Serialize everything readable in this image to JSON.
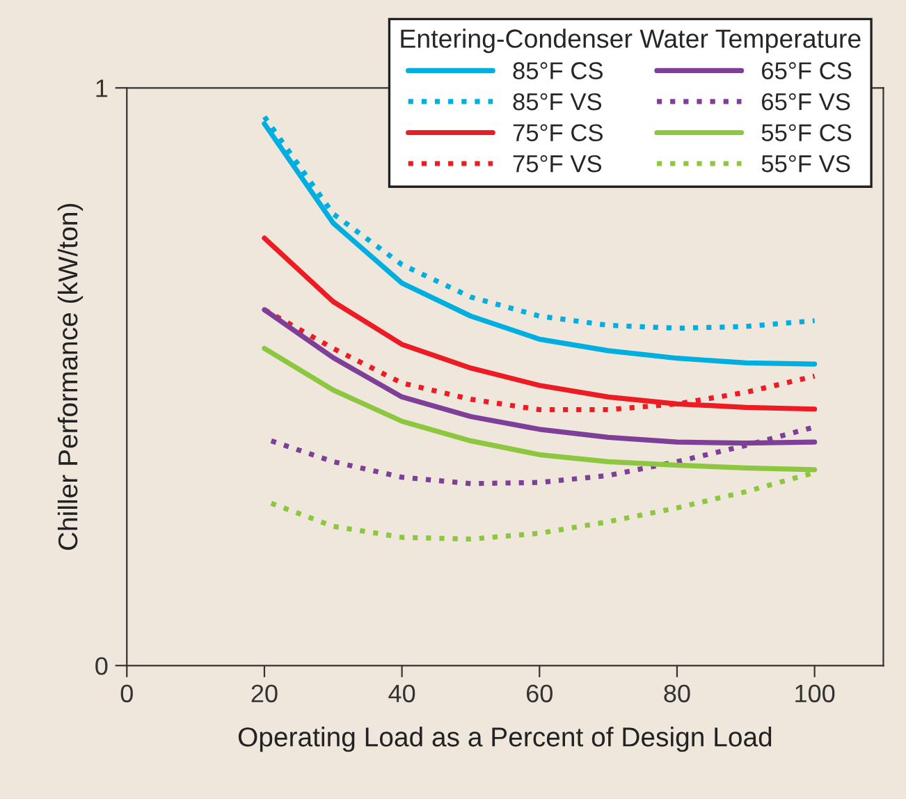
{
  "chart_data": {
    "type": "line",
    "xlabel": "Operating Load as a Percent of Design Load",
    "ylabel": "Chiller Performance (kW/ton)",
    "legend_title": "Entering-Condenser Water Temperature",
    "legend": "top right",
    "grid": false,
    "xlim": [
      0,
      110
    ],
    "xticks": [
      0,
      20,
      40,
      60,
      80,
      100
    ],
    "ylim": [
      0,
      1
    ],
    "yticks": [
      0,
      1
    ],
    "x": [
      20,
      30,
      40,
      50,
      60,
      70,
      80,
      90,
      100
    ],
    "series": [
      {
        "name": "85°F CS",
        "color": "#00aee0",
        "line_style": "solid",
        "values": [
          0.938,
          0.766,
          0.662,
          0.605,
          0.565,
          0.545,
          0.532,
          0.524,
          0.522
        ]
      },
      {
        "name": "85°F VS",
        "color": "#00aee0",
        "line_style": "dotted",
        "values": [
          0.95,
          0.782,
          0.694,
          0.638,
          0.605,
          0.589,
          0.584,
          0.587,
          0.597
        ]
      },
      {
        "name": "75°F CS",
        "color": "#ed1c24",
        "line_style": "solid",
        "values": [
          0.74,
          0.63,
          0.556,
          0.515,
          0.485,
          0.465,
          0.453,
          0.447,
          0.444
        ]
      },
      {
        "name": "75°F VS",
        "color": "#ed1c24",
        "line_style": "dotted",
        "values": [
          0.616,
          0.549,
          0.489,
          0.461,
          0.443,
          0.443,
          0.453,
          0.473,
          0.501
        ]
      },
      {
        "name": "65°F CS",
        "color": "#7d3f98",
        "line_style": "solid",
        "values": [
          0.616,
          0.533,
          0.465,
          0.431,
          0.409,
          0.395,
          0.387,
          0.385,
          0.387
        ]
      },
      {
        "name": "65°F VS",
        "color": "#7d3f98",
        "line_style": "dotted",
        "x": [
          21,
          30,
          40,
          50,
          60,
          70,
          80,
          90,
          100
        ],
        "values": [
          0.389,
          0.353,
          0.326,
          0.315,
          0.317,
          0.329,
          0.353,
          0.381,
          0.413
        ]
      },
      {
        "name": "55°F CS",
        "color": "#8dc63f",
        "line_style": "solid",
        "values": [
          0.549,
          0.477,
          0.423,
          0.389,
          0.365,
          0.353,
          0.347,
          0.342,
          0.339
        ]
      },
      {
        "name": "55°F VS",
        "color": "#8dc63f",
        "line_style": "dotted",
        "x": [
          21,
          30,
          40,
          50,
          60,
          70,
          80,
          90,
          100
        ],
        "values": [
          0.281,
          0.241,
          0.222,
          0.219,
          0.229,
          0.249,
          0.273,
          0.301,
          0.334
        ]
      }
    ]
  }
}
